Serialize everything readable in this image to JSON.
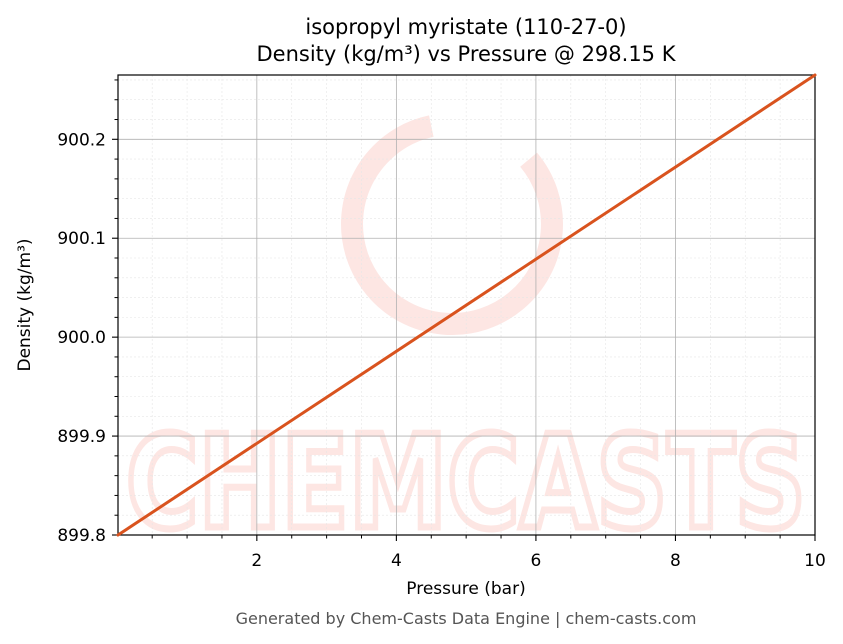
{
  "chart_data": {
    "type": "line",
    "title": "isopropyl myristate (110-27-0)",
    "subtitle": "Density (kg/m³) vs Pressure @ 298.15 K",
    "xlabel": "Pressure (bar)",
    "ylabel": "Density (kg/m³)",
    "xlim": [
      0.01,
      10
    ],
    "ylim": [
      899.8,
      900.265
    ],
    "xticks": [
      2,
      4,
      6,
      8,
      10
    ],
    "xtick_labels": [
      "2",
      "4",
      "6",
      "8",
      "10"
    ],
    "yticks": [
      899.8,
      899.9,
      900.0,
      900.1,
      900.2
    ],
    "ytick_labels": [
      "899.8",
      "899.9",
      "900.0",
      "900.1",
      "900.2"
    ],
    "grid": true,
    "series": [
      {
        "color": "#d9531e",
        "x": [
          0.01,
          10
        ],
        "y": [
          899.8,
          900.265
        ]
      }
    ]
  },
  "watermark": {
    "text": "CHEMCASTS",
    "color": "#fde6e3"
  },
  "footer": {
    "text": "Generated by Chem-Casts Data Engine | chem-casts.com"
  }
}
